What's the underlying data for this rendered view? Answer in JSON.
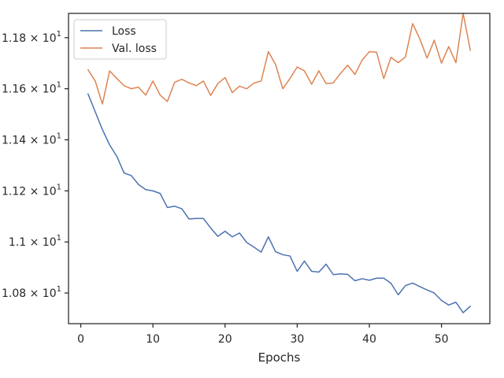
{
  "chart_data": {
    "type": "line",
    "xlabel": "Epochs",
    "ylabel": "",
    "xlim": [
      -1.7,
      56.7
    ],
    "ylim": [
      10.68,
      11.895
    ],
    "x_ticks": [
      0,
      10,
      20,
      30,
      40,
      50
    ],
    "x_tick_labels": [
      "0",
      "10",
      "20",
      "30",
      "40",
      "50"
    ],
    "y_ticks": [
      {
        "value": 10.8,
        "mant": "1.08",
        "exp": "1"
      },
      {
        "value": 11.0,
        "mant": "1.1",
        "exp": "1"
      },
      {
        "value": 11.2,
        "mant": "1.12",
        "exp": "1"
      },
      {
        "value": 11.4,
        "mant": "1.14",
        "exp": "1"
      },
      {
        "value": 11.6,
        "mant": "1.16",
        "exp": "1"
      },
      {
        "value": 11.8,
        "mant": "1.18",
        "exp": "1"
      }
    ],
    "legend_position": "upper-left",
    "grid": false,
    "x": [
      1,
      2,
      3,
      4,
      5,
      6,
      7,
      8,
      9,
      10,
      11,
      12,
      13,
      14,
      15,
      16,
      17,
      18,
      19,
      20,
      21,
      22,
      23,
      24,
      25,
      26,
      27,
      28,
      29,
      30,
      31,
      32,
      33,
      34,
      35,
      36,
      37,
      38,
      39,
      40,
      41,
      42,
      43,
      44,
      45,
      46,
      47,
      48,
      49,
      50,
      51,
      52,
      53,
      54
    ],
    "series": [
      {
        "name": "Loss",
        "color": "#4c72b0",
        "values": [
          11.58,
          11.51,
          11.44,
          11.38,
          11.335,
          11.27,
          11.26,
          11.225,
          11.205,
          11.2,
          11.19,
          11.135,
          11.14,
          11.13,
          11.09,
          11.092,
          11.092,
          11.055,
          11.022,
          11.042,
          11.02,
          11.035,
          10.998,
          10.98,
          10.96,
          11.02,
          10.962,
          10.95,
          10.945,
          10.885,
          10.925,
          10.885,
          10.882,
          10.913,
          10.872,
          10.875,
          10.873,
          10.848,
          10.856,
          10.85,
          10.858,
          10.858,
          10.838,
          10.793,
          10.829,
          10.839,
          10.825,
          10.812,
          10.8,
          10.771,
          10.753,
          10.764,
          10.723,
          10.748
        ]
      },
      {
        "name": "Val. loss",
        "color": "#dd8452",
        "values": [
          11.675,
          11.63,
          11.54,
          11.67,
          11.64,
          11.612,
          11.6,
          11.606,
          11.575,
          11.63,
          11.575,
          11.55,
          11.625,
          11.637,
          11.623,
          11.612,
          11.63,
          11.574,
          11.62,
          11.644,
          11.585,
          11.61,
          11.6,
          11.622,
          11.63,
          11.745,
          11.695,
          11.6,
          11.64,
          11.685,
          11.67,
          11.618,
          11.67,
          11.62,
          11.623,
          11.66,
          11.692,
          11.656,
          11.712,
          11.745,
          11.743,
          11.64,
          11.723,
          11.702,
          11.724,
          11.855,
          11.795,
          11.72,
          11.79,
          11.7,
          11.765,
          11.702,
          11.895,
          11.75
        ]
      }
    ]
  }
}
